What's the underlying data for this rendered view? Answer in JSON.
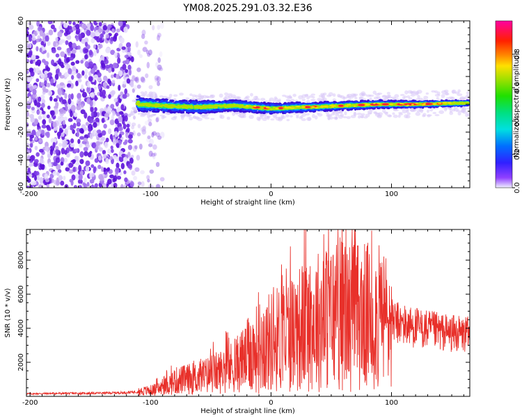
{
  "figure": {
    "title": "YM08.2025.291.03.32.E36"
  },
  "chart_data": [
    {
      "type": "heatmap",
      "title": "YM08.2025.291.03.32.E36",
      "xlabel": "Height of straight line (km)",
      "ylabel": "Frequency (Hz)",
      "xlim": [
        -203,
        165
      ],
      "ylim": [
        -60,
        60
      ],
      "xticks": [
        -200,
        -100,
        0,
        100
      ],
      "yticks": [
        -60,
        -40,
        -20,
        0,
        20,
        40,
        60
      ],
      "description": "Spectrogram: broadband noise (purple speckle) below about -115 km; narrow band centered near 0 Hz from about -115 km to 165 km, amplitude increasing toward higher km",
      "noise_region_km": [
        -203,
        -115
      ],
      "band_region_km": [
        -115,
        165
      ],
      "band_center_hz": [
        {
          "x": -110,
          "y": 0
        },
        {
          "x": -90,
          "y": -1
        },
        {
          "x": -60,
          "y": -2
        },
        {
          "x": -30,
          "y": -1
        },
        {
          "x": 0,
          "y": -3
        },
        {
          "x": 30,
          "y": -2
        },
        {
          "x": 60,
          "y": -1
        },
        {
          "x": 90,
          "y": 0
        },
        {
          "x": 120,
          "y": 0
        },
        {
          "x": 165,
          "y": 1
        }
      ],
      "colorbar": {
        "label": "Normalized spectral amplitude",
        "ticks": [
          "0.0",
          "0.2",
          "0.4",
          "0.6",
          "0.8"
        ],
        "range": [
          0,
          1
        ]
      }
    },
    {
      "type": "line",
      "xlabel": "Height of straight line (km)",
      "ylabel": "SNR (10 * v/v)",
      "xlim": [
        -203,
        165
      ],
      "ylim": [
        0,
        9800
      ],
      "xticks": [
        -200,
        -100,
        0,
        100
      ],
      "yticks": [
        2000,
        4000,
        6000,
        8000
      ],
      "series": [
        {
          "name": "SNR",
          "color": "#e8302a",
          "points": [
            {
              "x": -203,
              "y": 150
            },
            {
              "x": -180,
              "y": 170
            },
            {
              "x": -150,
              "y": 180
            },
            {
              "x": -120,
              "y": 220
            },
            {
              "x": -100,
              "y": 350
            },
            {
              "x": -90,
              "y": 500
            },
            {
              "x": -80,
              "y": 900
            },
            {
              "x": -70,
              "y": 1000
            },
            {
              "x": -60,
              "y": 1100
            },
            {
              "x": -50,
              "y": 1300
            },
            {
              "x": -40,
              "y": 1500
            },
            {
              "x": -30,
              "y": 1800
            },
            {
              "x": -20,
              "y": 2300
            },
            {
              "x": -10,
              "y": 2900
            },
            {
              "x": 0,
              "y": 3200
            },
            {
              "x": 10,
              "y": 3500
            },
            {
              "x": 20,
              "y": 3900
            },
            {
              "x": 30,
              "y": 4200
            },
            {
              "x": 40,
              "y": 4500
            },
            {
              "x": 50,
              "y": 4700
            },
            {
              "x": 60,
              "y": 4800
            },
            {
              "x": 70,
              "y": 4750
            },
            {
              "x": 80,
              "y": 4650
            },
            {
              "x": 90,
              "y": 4550
            },
            {
              "x": 100,
              "y": 4400
            },
            {
              "x": 110,
              "y": 4200
            },
            {
              "x": 120,
              "y": 4050
            },
            {
              "x": 130,
              "y": 3900
            },
            {
              "x": 140,
              "y": 3800
            },
            {
              "x": 150,
              "y": 3700
            },
            {
              "x": 165,
              "y": 3600
            }
          ],
          "peak": {
            "x": 59,
            "y": 9800
          }
        }
      ]
    }
  ]
}
